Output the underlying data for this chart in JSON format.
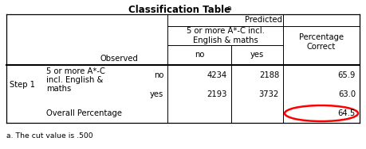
{
  "title": "Classification Table",
  "title_superscript": "a",
  "footnote": "a. The cut value is .500",
  "header_predicted": "Predicted",
  "header_subgroup": "5 or more A*-C incl.\nEnglish & maths",
  "header_no": "no",
  "header_yes": "yes",
  "header_pct": "Percentage\nCorrect",
  "header_observed": "Observed",
  "step_label": "Step 1",
  "row1_label1": "5 or more A*-C",
  "row1_label2": "incl. English &",
  "row1_label3": "maths",
  "row1_sub1": "no",
  "row1_sub2": "yes",
  "row1_no_no": "4234",
  "row1_no_yes": "2188",
  "row1_no_pct": "65.9",
  "row2_no_no": "2193",
  "row2_no_yes": "3732",
  "row2_no_pct": "63.0",
  "row3_label": "Overall Percentage",
  "row3_pct": "64.5",
  "circle_color": "red",
  "bg_color": "white",
  "line_color": "black",
  "font_size": 7.2,
  "title_font_size": 8.5
}
